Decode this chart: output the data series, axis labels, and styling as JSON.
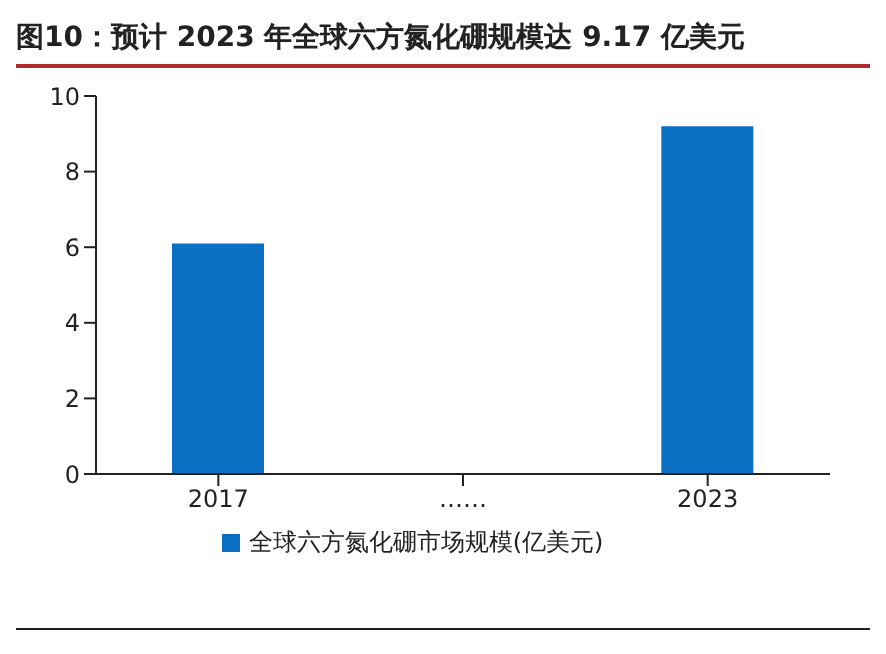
{
  "chart_data": {
    "type": "bar",
    "title": "图10：预计 2023 年全球六方氮化硼规模达 9.17 亿美元",
    "categories": [
      "2017",
      "……",
      "2023"
    ],
    "series": [
      {
        "name": "全球六方氮化硼市场规模(亿美元)",
        "color": "#0b6fc4",
        "values": [
          6.1,
          null,
          9.2
        ]
      }
    ],
    "ylim": [
      0,
      10
    ],
    "yticks": [
      0,
      2,
      4,
      6,
      8,
      10
    ],
    "grid": false,
    "legend": "bottom"
  }
}
